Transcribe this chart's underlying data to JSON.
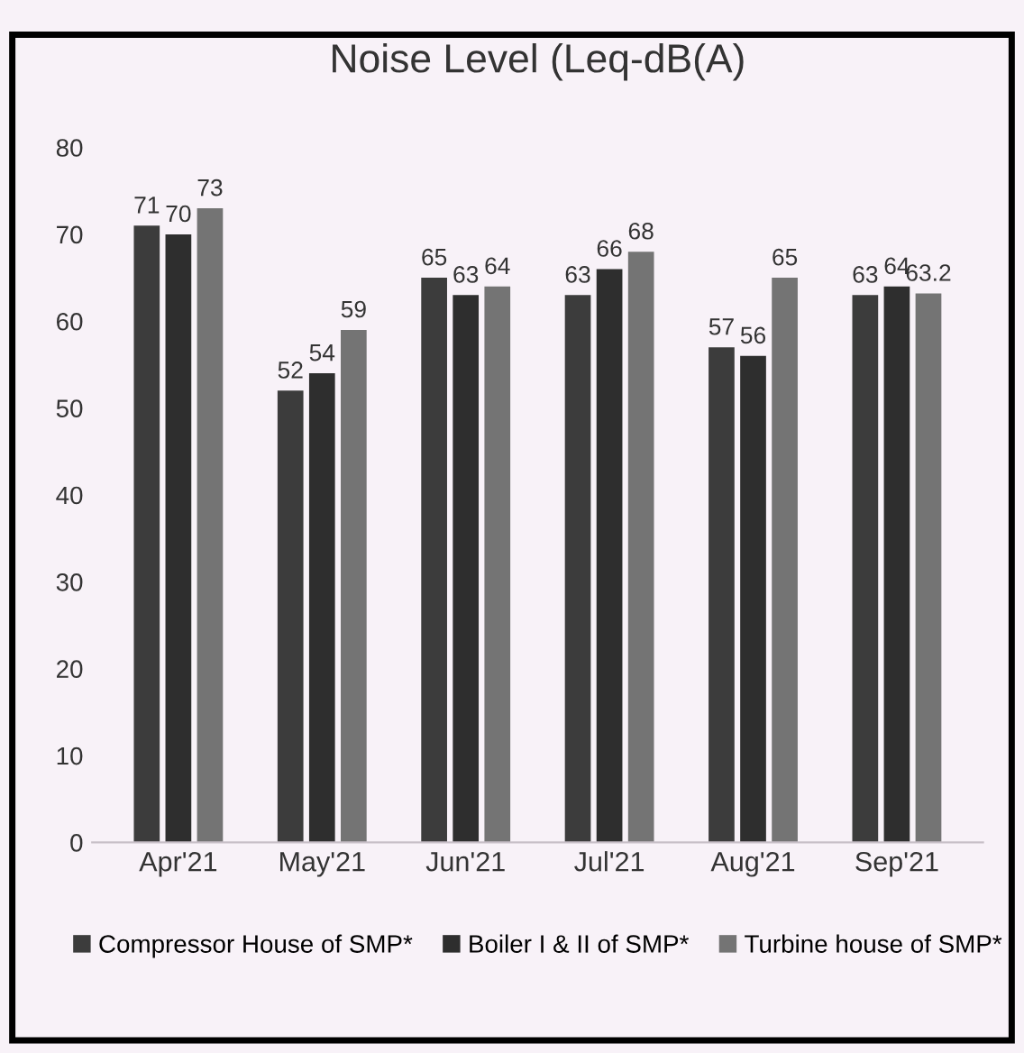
{
  "chart_data": {
    "type": "bar",
    "title": "Noise Level (Leq-dB(A)",
    "categories": [
      "Apr'21",
      "May'21",
      "Jun'21",
      "Jul'21",
      "Aug'21",
      "Sep'21"
    ],
    "series": [
      {
        "name": "Compressor House of SMP*",
        "color": "#3c3c3c",
        "values": [
          71,
          52,
          65,
          63,
          57,
          63
        ]
      },
      {
        "name": "Boiler I & II of SMP*",
        "color": "#2e2e2e",
        "values": [
          70,
          54,
          63,
          66,
          56,
          64
        ]
      },
      {
        "name": "Turbine house of SMP*",
        "color": "#747474",
        "values": [
          73,
          59,
          64,
          68,
          65,
          63.2
        ]
      }
    ],
    "ylim": [
      0,
      80
    ],
    "yticks": [
      0,
      10,
      20,
      30,
      40,
      50,
      60,
      70,
      80
    ],
    "grid": false,
    "legend": "bottom",
    "data_labels": true
  }
}
